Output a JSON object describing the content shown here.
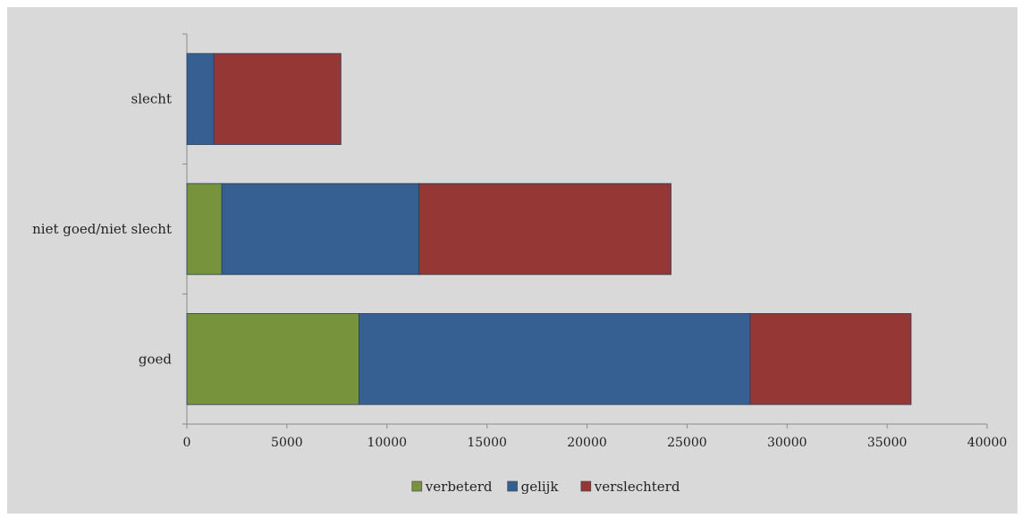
{
  "chart_data": {
    "type": "bar",
    "orientation": "horizontal",
    "stacked": true,
    "categories": [
      "slecht",
      "niet goed/niet slecht",
      "goed"
    ],
    "series": [
      {
        "name": "verbeterd",
        "color": "#77933c",
        "values": [
          0,
          1750,
          8600
        ]
      },
      {
        "name": "gelijk",
        "color": "#376092",
        "values": [
          1350,
          9850,
          19550
        ]
      },
      {
        "name": "verslechterd",
        "color": "#953735",
        "values": [
          6350,
          12600,
          8050
        ]
      }
    ],
    "xlim": [
      0,
      40000
    ],
    "xticks": [
      0,
      5000,
      10000,
      15000,
      20000,
      25000,
      30000,
      35000,
      40000
    ],
    "grid": false,
    "legend_position": "bottom"
  }
}
